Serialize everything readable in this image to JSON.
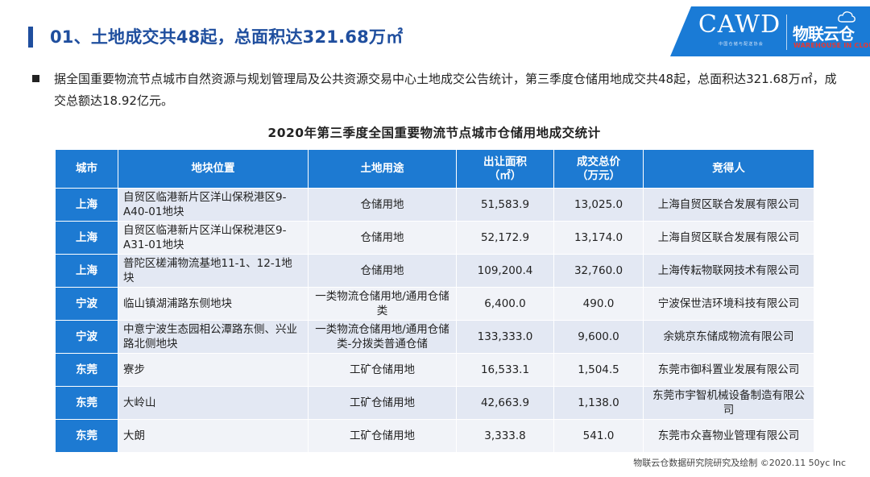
{
  "header": {
    "title": "01、土地成交共48起，总面积达321.68万㎡",
    "logo_cawd": "CAWD",
    "logo_cawd_sub": "中国仓储与配送协会",
    "logo_wlyc_cn": "物联云仓",
    "logo_wlyc_en": "WAREHOUSE IN CLOUD"
  },
  "summary": {
    "text": "据全国重要物流节点城市自然资源与规划管理局及公共资源交易中心土地成交公告统计，第三季度仓储用地成交共48起，总面积达321.68万㎡，成交总额达18.92亿元。"
  },
  "table": {
    "title": "2020年第三季度全国重要物流节点城市仓储用地成交统计",
    "headers": {
      "city": "城市",
      "location": "地块位置",
      "usage": "土地用途",
      "area_line1": "出让面积",
      "area_line2": "（㎡）",
      "price_line1": "成交总价",
      "price_line2": "（万元）",
      "winner": "竞得人"
    },
    "rows": [
      {
        "city": "上海",
        "location": "自贸区临港新片区洋山保税港区9-A40-01地块",
        "usage": "仓储用地",
        "area": "51,583.9",
        "price": "13,025.0",
        "winner": "上海自贸区联合发展有限公司"
      },
      {
        "city": "上海",
        "location": "自贸区临港新片区洋山保税港区9-A31-01地块",
        "usage": "仓储用地",
        "area": "52,172.9",
        "price": "13,174.0",
        "winner": "上海自贸区联合发展有限公司"
      },
      {
        "city": "上海",
        "location": "普陀区槎浦物流基地11-1、12-1地块",
        "usage": "仓储用地",
        "area": "109,200.4",
        "price": "32,760.0",
        "winner": "上海传耘物联网技术有限公司"
      },
      {
        "city": "宁波",
        "location": "临山镇湖浦路东侧地块",
        "usage": "一类物流仓储用地/通用仓储类",
        "area": "6,400.0",
        "price": "490.0",
        "winner": "宁波保世洁环境科技有限公司"
      },
      {
        "city": "宁波",
        "location": "中意宁波生态园相公潭路东侧、兴业路北侧地块",
        "usage": "一类物流仓储用地/通用仓储类-分拨类普通仓储",
        "area": "133,333.0",
        "price": "9,600.0",
        "winner": "余姚京东储成物流有限公司"
      },
      {
        "city": "东莞",
        "location": "寮步",
        "usage": "工矿仓储用地",
        "area": "16,533.1",
        "price": "1,504.5",
        "winner": "东莞市御科置业发展有限公司"
      },
      {
        "city": "东莞",
        "location": "大岭山",
        "usage": "工矿仓储用地",
        "area": "42,663.9",
        "price": "1,138.0",
        "winner": "东莞市宇智机械设备制造有限公司"
      },
      {
        "city": "东莞",
        "location": "大朗",
        "usage": "工矿仓储用地",
        "area": "3,333.8",
        "price": "541.0",
        "winner": "东莞市众喜物业管理有限公司"
      }
    ]
  },
  "footer": {
    "credit": "物联云仓数据研究院研究及绘制   ©2020.11 50yc Inc"
  },
  "colors": {
    "title_blue": "#1f4e9e",
    "header_blue": "#1d7ad2",
    "row_a": "#e3e8f3",
    "row_b": "#f1f3f8",
    "logo_red": "#e53935"
  }
}
